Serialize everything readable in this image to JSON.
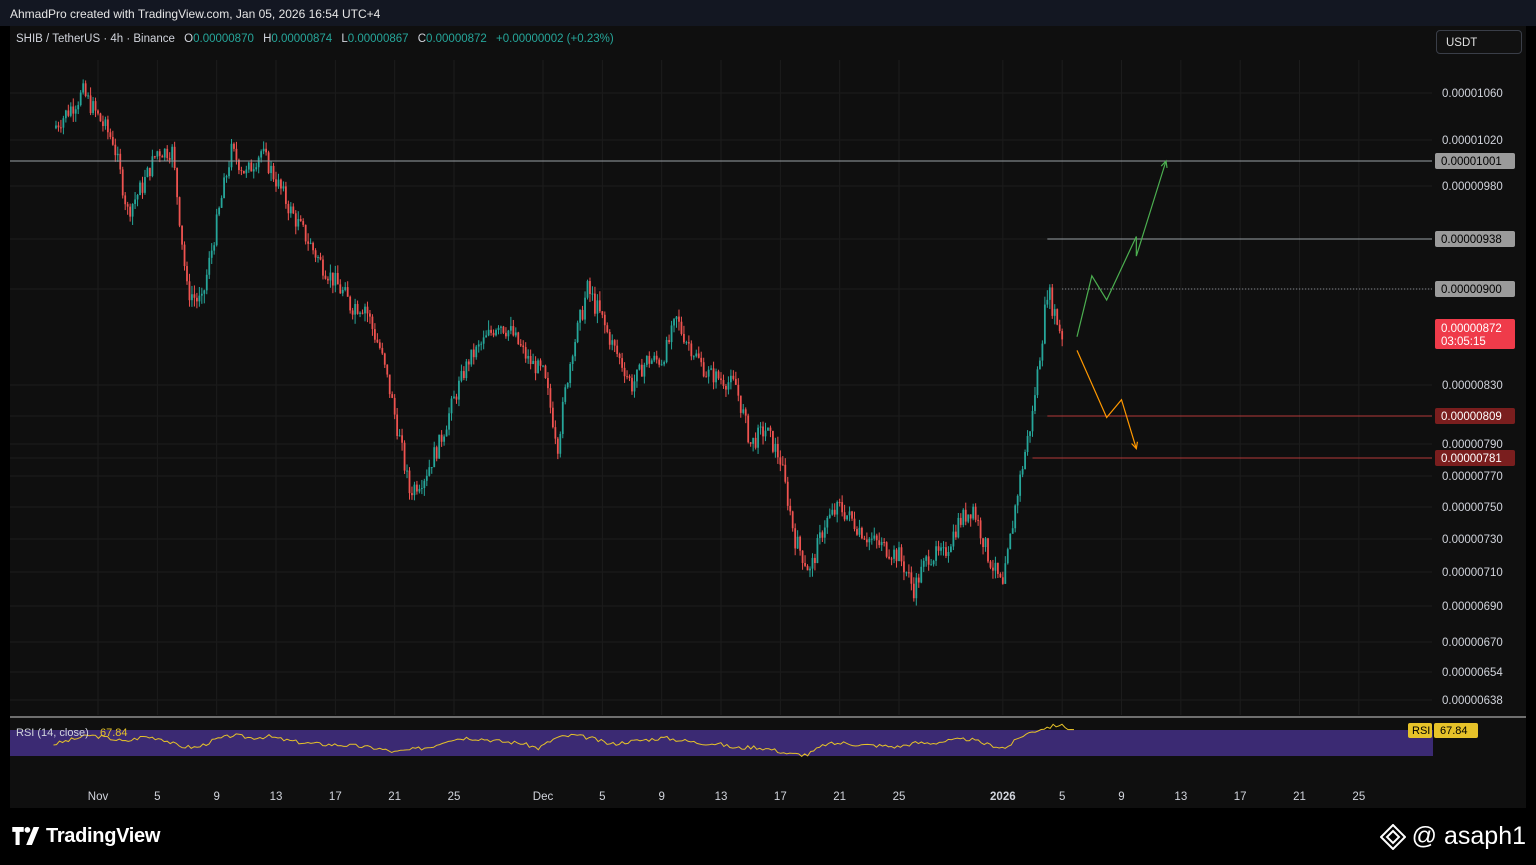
{
  "header": {
    "credit": "AhmadPro created with TradingView.com, Jan 05, 2026 16:54 UTC+4"
  },
  "legend": {
    "symbol": "SHIB / TetherUS · 4h · Binance",
    "open_label": "O",
    "open": "0.00000870",
    "high_label": "H",
    "high": "0.00000874",
    "low_label": "L",
    "low": "0.00000867",
    "close_label": "C",
    "close": "0.00000872",
    "change": "+0.00000002 (+0.23%)"
  },
  "currency_button": "USDT",
  "price_axis": {
    "ticks": [
      "0.00001060",
      "0.00001020",
      "0.00000980",
      "0.00000830",
      "0.00000790",
      "0.00000770",
      "0.00000750",
      "0.00000730",
      "0.00000710",
      "0.00000690",
      "0.00000670",
      "0.00000654",
      "0.00000638"
    ],
    "levels": [
      {
        "label": "0.00001001",
        "kind": "resistance"
      },
      {
        "label": "0.00000938",
        "kind": "resistance"
      },
      {
        "label": "0.00000900",
        "kind": "pivot"
      },
      {
        "label": "0.00000809",
        "kind": "support"
      },
      {
        "label": "0.00000781",
        "kind": "support"
      }
    ],
    "last_price": "0.00000872",
    "countdown": "03:05:15"
  },
  "time_axis": {
    "ticks": [
      "Nov",
      "5",
      "9",
      "13",
      "17",
      "21",
      "25",
      "Dec",
      "5",
      "9",
      "13",
      "17",
      "21",
      "25",
      "2026",
      "5",
      "9",
      "13",
      "17",
      "21",
      "25"
    ]
  },
  "rsi": {
    "label": "RSI (14, close)",
    "value": "67.84",
    "tag": "RSI",
    "axis_value": "67.84"
  },
  "chart_data": {
    "type": "candlestick",
    "symbol": "SHIB / TetherUS",
    "interval": "4h",
    "exchange": "Binance",
    "x_start": "2025-10-29",
    "x_end": "2026-01-06",
    "ylim": [
      6.3e-06,
      1.08e-05
    ],
    "series": [
      {
        "name": "SHIB / TetherUS",
        "points": [
          {
            "x": "2025-10-29",
            "y": 1.03e-05
          },
          {
            "x": "2025-10-31",
            "y": 1.06e-05
          },
          {
            "x": "2025-11-02",
            "y": 1.02e-05
          },
          {
            "x": "2025-11-03",
            "y": 9.6e-06
          },
          {
            "x": "2025-11-04",
            "y": 9.8e-06
          },
          {
            "x": "2025-11-05",
            "y": 1.01e-05
          },
          {
            "x": "2025-11-06",
            "y": 1.01e-05
          },
          {
            "x": "2025-11-07",
            "y": 9e-06
          },
          {
            "x": "2025-11-08",
            "y": 8.9e-06
          },
          {
            "x": "2025-11-09",
            "y": 9.5e-06
          },
          {
            "x": "2025-11-10",
            "y": 1.01e-05
          },
          {
            "x": "2025-11-11",
            "y": 9.9e-06
          },
          {
            "x": "2025-11-12",
            "y": 1.01e-05
          },
          {
            "x": "2025-11-14",
            "y": 9.6e-06
          },
          {
            "x": "2025-11-16",
            "y": 9.2e-06
          },
          {
            "x": "2025-11-18",
            "y": 8.9e-06
          },
          {
            "x": "2025-11-19",
            "y": 8.9e-06
          },
          {
            "x": "2025-11-20",
            "y": 8.6e-06
          },
          {
            "x": "2025-11-21",
            "y": 8.1e-06
          },
          {
            "x": "2025-11-22",
            "y": 7.6e-06
          },
          {
            "x": "2025-11-23",
            "y": 7.7e-06
          },
          {
            "x": "2025-11-24",
            "y": 7.9e-06
          },
          {
            "x": "2025-11-26",
            "y": 8.5e-06
          },
          {
            "x": "2025-11-28",
            "y": 8.8e-06
          },
          {
            "x": "2025-11-29",
            "y": 8.7e-06
          },
          {
            "x": "2025-11-30",
            "y": 8.5e-06
          },
          {
            "x": "2025-12-01",
            "y": 8.4e-06
          },
          {
            "x": "2025-12-02",
            "y": 7.9e-06
          },
          {
            "x": "2025-12-03",
            "y": 8.6e-06
          },
          {
            "x": "2025-12-04",
            "y": 9e-06
          },
          {
            "x": "2025-12-05",
            "y": 8.8e-06
          },
          {
            "x": "2025-12-07",
            "y": 8.3e-06
          },
          {
            "x": "2025-12-08",
            "y": 8.5e-06
          },
          {
            "x": "2025-12-09",
            "y": 8.5e-06
          },
          {
            "x": "2025-12-10",
            "y": 8.8e-06
          },
          {
            "x": "2025-12-11",
            "y": 8.6e-06
          },
          {
            "x": "2025-12-12",
            "y": 8.4e-06
          },
          {
            "x": "2025-12-14",
            "y": 8.3e-06
          },
          {
            "x": "2025-12-15",
            "y": 7.9e-06
          },
          {
            "x": "2025-12-16",
            "y": 8e-06
          },
          {
            "x": "2025-12-17",
            "y": 7.8e-06
          },
          {
            "x": "2025-12-18",
            "y": 7.3e-06
          },
          {
            "x": "2025-12-19",
            "y": 7.1e-06
          },
          {
            "x": "2025-12-20",
            "y": 7.4e-06
          },
          {
            "x": "2025-12-21",
            "y": 7.5e-06
          },
          {
            "x": "2025-12-23",
            "y": 7.3e-06
          },
          {
            "x": "2025-12-25",
            "y": 7.2e-06
          },
          {
            "x": "2025-12-26",
            "y": 7e-06
          },
          {
            "x": "2025-12-27",
            "y": 7.2e-06
          },
          {
            "x": "2025-12-28",
            "y": 7.2e-06
          },
          {
            "x": "2025-12-29",
            "y": 7.4e-06
          },
          {
            "x": "2025-12-30",
            "y": 7.5e-06
          },
          {
            "x": "2025-12-31",
            "y": 7.2e-06
          },
          {
            "x": "2026-01-01",
            "y": 7e-06
          },
          {
            "x": "2026-01-02",
            "y": 7.6e-06
          },
          {
            "x": "2026-01-03",
            "y": 8.1e-06
          },
          {
            "x": "2026-01-04",
            "y": 9e-06
          },
          {
            "x": "2026-01-05",
            "y": 8.7e-06
          }
        ]
      }
    ],
    "projections": [
      {
        "name": "bullish",
        "color": "#4caf50",
        "points": [
          {
            "x": "2026-01-06",
            "y": 8.69e-06
          },
          {
            "x": "2026-01-07",
            "y": 9.1e-06
          },
          {
            "x": "2026-01-08",
            "y": 8.93e-06
          },
          {
            "x": "2026-01-10",
            "y": 9.4e-06
          },
          {
            "x": "2026-01-10",
            "y": 9.25e-06
          },
          {
            "x": "2026-01-12",
            "y": 1.001e-05
          }
        ]
      },
      {
        "name": "bearish",
        "color": "#ff9800",
        "points": [
          {
            "x": "2026-01-06",
            "y": 8.58e-06
          },
          {
            "x": "2026-01-08",
            "y": 8.08e-06
          },
          {
            "x": "2026-01-09",
            "y": 8.2e-06
          },
          {
            "x": "2026-01-10",
            "y": 7.87e-06
          }
        ]
      }
    ],
    "rsi_series": [
      48,
      55,
      62,
      58,
      52,
      60,
      57,
      45,
      43,
      55,
      62,
      58,
      60,
      54,
      50,
      48,
      47,
      45,
      42,
      36,
      40,
      44,
      55,
      58,
      56,
      52,
      50,
      42,
      58,
      62,
      57,
      48,
      52,
      55,
      58,
      54,
      50,
      49,
      42,
      44,
      40,
      33,
      32,
      48,
      50,
      47,
      46,
      44,
      50,
      50,
      54,
      56,
      48,
      42,
      62,
      72,
      78,
      68
    ]
  }
}
